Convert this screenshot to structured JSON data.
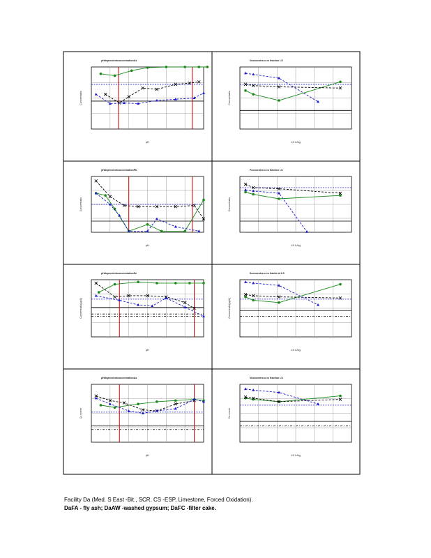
{
  "caption": {
    "line1": "Facility Da (Med. S East -Bit., SCR, CS -ESP, Limestone, Forced Oxidation).",
    "line2": "DaFA - fly ash; DaAW -washed gypsum; DaFC -filter cake."
  },
  "colors": {
    "green_series": "#1a8a1a",
    "blue_series": "#1a1acc",
    "black_series": "#000000",
    "red_lines": "#cc0000",
    "grid": "#888888"
  },
  "chart_data": [
    {
      "type": "line",
      "panel": "row1-left",
      "title": "pHdependentconcentrationAs",
      "ylabel": "Concentratio",
      "xlabel": "pH",
      "ylim": [
        0,
        5
      ],
      "xlim": [
        1,
        13
      ],
      "series": [
        {
          "marker": "circle",
          "values": [
            [
              2,
              4.45
            ],
            [
              3.5,
              4.3
            ],
            [
              5.3,
              4.7
            ],
            [
              7,
              4.95
            ],
            [
              9,
              5
            ],
            [
              11,
              5
            ],
            [
              12.5,
              5
            ],
            [
              13.4,
              5
            ]
          ]
        },
        {
          "marker": "x",
          "values": [
            [
              2.5,
              2.8
            ],
            [
              4,
              2.1
            ],
            [
              5,
              2.6
            ],
            [
              6.5,
              3.3
            ],
            [
              8,
              3.2
            ],
            [
              10,
              3.6
            ],
            [
              11.5,
              3.7
            ],
            [
              12.5,
              3.8
            ]
          ]
        },
        {
          "marker": "triangle",
          "values": [
            [
              1.5,
              2.8
            ],
            [
              3,
              2.05
            ],
            [
              4.5,
              2.1
            ],
            [
              6,
              2.05
            ],
            [
              8,
              2.3
            ],
            [
              10,
              2.4
            ],
            [
              12,
              2.5
            ],
            [
              13,
              2.9
            ]
          ]
        }
      ],
      "hlines": [
        3.6,
        2.25
      ],
      "vlines": [
        3.9,
        11.8
      ]
    },
    {
      "type": "line",
      "panel": "row1-right",
      "title": "Nconcentra o vs fraction LS",
      "ylabel": "Concentratio",
      "xlabel": "LS L/kg",
      "ylim": [
        0,
        5
      ],
      "xlim": [
        0,
        10
      ],
      "series": [
        {
          "marker": "circle",
          "values": [
            [
              0.5,
              3.1
            ],
            [
              1.2,
              2.8
            ],
            [
              3.5,
              2.3
            ],
            [
              9,
              3.8
            ]
          ]
        },
        {
          "marker": "x",
          "values": [
            [
              0.5,
              3.6
            ],
            [
              1.2,
              3.5
            ],
            [
              3.5,
              3.4
            ],
            [
              9,
              3.3
            ]
          ]
        },
        {
          "marker": "triangle",
          "values": [
            [
              0.5,
              4.5
            ],
            [
              1.2,
              4.4
            ],
            [
              3.5,
              4.1
            ],
            [
              7,
              2.2
            ]
          ]
        }
      ],
      "hlines": [
        3.6,
        1.5
      ]
    },
    {
      "type": "line",
      "panel": "row2-left",
      "title": "pHdependentconcentrationPb",
      "ylabel": "Concentratio",
      "xlabel": "pH",
      "ylim": [
        0,
        5
      ],
      "xlim": [
        1,
        13
      ],
      "series": [
        {
          "marker": "circle",
          "values": [
            [
              1.5,
              3.5
            ],
            [
              2.5,
              3.3
            ],
            [
              3.5,
              2.1
            ],
            [
              5,
              0.1
            ],
            [
              7,
              0.7
            ],
            [
              8.5,
              0.1
            ],
            [
              11,
              0.1
            ],
            [
              13,
              2.9
            ]
          ]
        },
        {
          "marker": "x",
          "values": [
            [
              1.5,
              4.6
            ],
            [
              3,
              3.2
            ],
            [
              4.5,
              2.4
            ],
            [
              6,
              2.3
            ],
            [
              8,
              2.3
            ],
            [
              10,
              2.3
            ],
            [
              12,
              2.4
            ],
            [
              13,
              1.2
            ]
          ]
        },
        {
          "marker": "triangle",
          "values": [
            [
              1.5,
              3.5
            ],
            [
              3,
              2.5
            ],
            [
              4,
              1.5
            ],
            [
              5,
              0.1
            ],
            [
              7,
              0.1
            ],
            [
              8,
              1.2
            ],
            [
              10,
              0.5
            ],
            [
              12.5,
              0.1
            ]
          ]
        }
      ],
      "hlines": [
        2.5,
        1.0
      ],
      "vlines": [
        5.0,
        11.8
      ]
    },
    {
      "type": "line",
      "panel": "row2-right",
      "title": "Pconcentra o vs fraction LS",
      "ylabel": "Concentratio",
      "xlabel": "LS L/kg",
      "ylim": [
        0,
        5
      ],
      "xlim": [
        0,
        10
      ],
      "series": [
        {
          "marker": "circle",
          "values": [
            [
              0.5,
              3.6
            ],
            [
              1.2,
              3.4
            ],
            [
              3.5,
              3.0
            ],
            [
              9,
              3.3
            ]
          ]
        },
        {
          "marker": "x",
          "values": [
            [
              0.5,
              4.3
            ],
            [
              1.2,
              4.0
            ],
            [
              3.5,
              3.9
            ],
            [
              9,
              3.5
            ]
          ]
        },
        {
          "marker": "triangle",
          "values": [
            [
              0.5,
              3.8
            ],
            [
              1.2,
              3.7
            ],
            [
              3.5,
              3.5
            ],
            [
              6,
              0.05
            ]
          ]
        }
      ],
      "hlines": [
        4.0,
        1.0
      ]
    },
    {
      "type": "line",
      "panel": "row3-left",
      "title": "pHdependentconcentrationSe",
      "ylabel": "Concentratio[µg/L]",
      "xlabel": "pH",
      "ylim": [
        0,
        5
      ],
      "xlim": [
        1,
        13
      ],
      "series": [
        {
          "marker": "circle",
          "values": [
            [
              1.8,
              3.9
            ],
            [
              3.5,
              4.6
            ],
            [
              6,
              4.8
            ],
            [
              8,
              4.7
            ],
            [
              10,
              4.7
            ],
            [
              11.5,
              4.7
            ],
            [
              13,
              4.7
            ]
          ]
        },
        {
          "marker": "x",
          "values": [
            [
              1.5,
              4.7
            ],
            [
              3.5,
              3.5
            ],
            [
              5,
              3.6
            ],
            [
              7,
              3.6
            ],
            [
              9,
              3.5
            ],
            [
              11,
              3.0
            ],
            [
              12,
              2.5
            ]
          ]
        },
        {
          "marker": "triangle",
          "values": [
            [
              1.5,
              3.6
            ],
            [
              4,
              3.2
            ],
            [
              6,
              2.8
            ],
            [
              7.5,
              2.7
            ],
            [
              9,
              3.4
            ],
            [
              11,
              2.6
            ],
            [
              13,
              1.8
            ]
          ]
        }
      ],
      "hlines": [
        3.3,
        2.6,
        2.0,
        1.8
      ],
      "vlines": [
        4.0,
        12.0
      ]
    },
    {
      "type": "line",
      "panel": "row3-right",
      "title": "Sconcentra o vs fractio of LS",
      "ylabel": "Concentratio[µg/L]",
      "xlabel": "LS L/kg",
      "ylim": [
        0,
        5
      ],
      "xlim": [
        0,
        10
      ],
      "series": [
        {
          "marker": "circle",
          "values": [
            [
              0.5,
              3.5
            ],
            [
              1.2,
              3.2
            ],
            [
              3.5,
              3.0
            ],
            [
              9,
              4.6
            ]
          ]
        },
        {
          "marker": "x",
          "values": [
            [
              0.5,
              3.7
            ],
            [
              1.2,
              3.6
            ],
            [
              3.5,
              3.5
            ],
            [
              9,
              3.4
            ]
          ]
        },
        {
          "marker": "triangle",
          "values": [
            [
              0.5,
              4.8
            ],
            [
              1.2,
              4.7
            ],
            [
              3.5,
              4.5
            ],
            [
              7,
              2.8
            ]
          ]
        }
      ],
      "hlines": [
        3.3,
        2.3,
        1.8
      ]
    },
    {
      "type": "line",
      "panel": "row4-left",
      "title": "pHdependentconcentrationAs",
      "ylabel": "Co ncentr",
      "xlabel": "pH",
      "ylim": [
        0,
        5
      ],
      "xlim": [
        1,
        13
      ],
      "series": [
        {
          "marker": "circle",
          "values": [
            [
              2,
              3.2
            ],
            [
              3.5,
              3.0
            ],
            [
              6,
              3.3
            ],
            [
              8,
              3.5
            ],
            [
              10,
              3.6
            ],
            [
              12,
              3.7
            ],
            [
              13,
              3.6
            ]
          ]
        },
        {
          "marker": "x",
          "values": [
            [
              1.5,
              4.0
            ],
            [
              3,
              3.6
            ],
            [
              4.5,
              3.4
            ],
            [
              6.5,
              2.8
            ],
            [
              8,
              2.7
            ],
            [
              10,
              3.3
            ],
            [
              12,
              3.6
            ]
          ]
        },
        {
          "marker": "triangle",
          "values": [
            [
              1.5,
              3.8
            ],
            [
              3,
              3.3
            ],
            [
              5,
              2.7
            ],
            [
              6.5,
              2.5
            ],
            [
              8,
              2.7
            ],
            [
              10,
              2.9
            ],
            [
              12,
              3.7
            ],
            [
              13,
              3.5
            ]
          ]
        }
      ],
      "hlines": [
        2.6,
        1.4,
        1.1
      ],
      "vlines": [
        4.0,
        12.0
      ]
    },
    {
      "type": "line",
      "panel": "row4-right",
      "title": "Nconcentra o vs fraction LS",
      "ylabel": "Co ncentr",
      "xlabel": "LS L/kg",
      "ylim": [
        0,
        5
      ],
      "xlim": [
        0,
        10
      ],
      "series": [
        {
          "marker": "circle",
          "values": [
            [
              0.5,
              3.8
            ],
            [
              1.2,
              3.7
            ],
            [
              3.5,
              3.5
            ],
            [
              9,
              4.0
            ]
          ]
        },
        {
          "marker": "x",
          "values": [
            [
              0.5,
              3.9
            ],
            [
              1.2,
              3.8
            ],
            [
              3.5,
              3.5
            ],
            [
              9,
              3.7
            ]
          ]
        },
        {
          "marker": "triangle",
          "values": [
            [
              0.5,
              4.6
            ],
            [
              1.2,
              4.5
            ],
            [
              3.5,
              4.3
            ],
            [
              7,
              3.3
            ]
          ]
        }
      ],
      "hlines": [
        3.2,
        1.8,
        1.4
      ]
    }
  ]
}
